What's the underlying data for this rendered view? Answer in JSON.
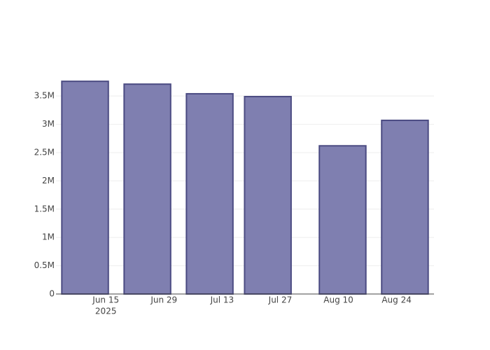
{
  "chart_data": {
    "type": "bar",
    "x": [
      "2025-06-10",
      "2025-06-25",
      "2025-07-10",
      "2025-07-24",
      "2025-08-11",
      "2025-08-26"
    ],
    "values": [
      3760000,
      3710000,
      3540000,
      3490000,
      2620000,
      3070000
    ],
    "color": "#7f7fb0",
    "edge_color": "#4b4b82",
    "xlim": [
      "2025-06-03",
      "2025-09-02"
    ],
    "xticks": [
      {
        "value": "2025-06-15",
        "label": "Jun 15"
      },
      {
        "value": "2025-06-29",
        "label": "Jun 29"
      },
      {
        "value": "2025-07-13",
        "label": "Jul 13"
      },
      {
        "value": "2025-07-27",
        "label": "Jul 27"
      },
      {
        "value": "2025-08-10",
        "label": "Aug 10"
      },
      {
        "value": "2025-08-24",
        "label": "Aug 24"
      }
    ],
    "x_year": "2025",
    "ylim": [
      0,
      3960000
    ],
    "yticks": [
      0,
      {
        "value": 500000,
        "label": "0.5M"
      },
      {
        "value": 1000000,
        "label": "1M"
      },
      {
        "value": 1500000,
        "label": "1.5M"
      },
      {
        "value": 2000000,
        "label": "2M"
      },
      {
        "value": 2500000,
        "label": "2.5M"
      },
      {
        "value": 3000000,
        "label": "3M"
      },
      {
        "value": 3500000,
        "label": "3.5M"
      }
    ],
    "grid": true
  }
}
